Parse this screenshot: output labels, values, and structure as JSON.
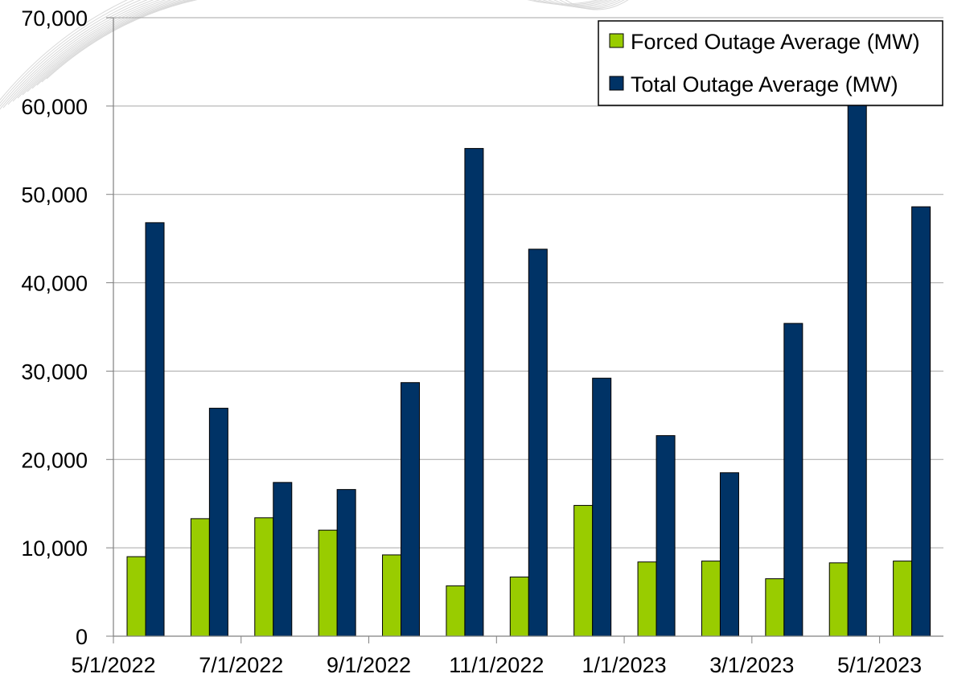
{
  "chart_data": {
    "type": "bar",
    "title": "",
    "xlabel": "",
    "ylabel": "",
    "x_dates": [
      "5/1/2022",
      "6/1/2022",
      "7/1/2022",
      "8/1/2022",
      "9/1/2022",
      "10/1/2022",
      "11/1/2022",
      "12/1/2022",
      "1/1/2023",
      "2/1/2023",
      "3/1/2023",
      "4/1/2023",
      "5/1/2023"
    ],
    "x_tick_labels": [
      "5/1/2022",
      "7/1/2022",
      "9/1/2022",
      "11/1/2022",
      "1/1/2023",
      "3/1/2023",
      "5/1/2023"
    ],
    "y_tick_labels": [
      "0",
      "10,000",
      "20,000",
      "30,000",
      "40,000",
      "50,000",
      "60,000",
      "70,000"
    ],
    "ylim": [
      0,
      70000
    ],
    "grid": true,
    "legend_position": "top-right",
    "series": [
      {
        "name": "Forced Outage Average (MW)",
        "color": "#99cc00",
        "values": [
          9000,
          13300,
          13400,
          12000,
          9200,
          5700,
          6700,
          14800,
          8400,
          8500,
          6500,
          8300,
          8500
        ]
      },
      {
        "name": "Total Outage Average (MW)",
        "color": "#003366",
        "values": [
          46800,
          25800,
          17400,
          16600,
          28700,
          55200,
          43800,
          29200,
          22700,
          18500,
          35400,
          61000,
          48600
        ]
      }
    ]
  }
}
